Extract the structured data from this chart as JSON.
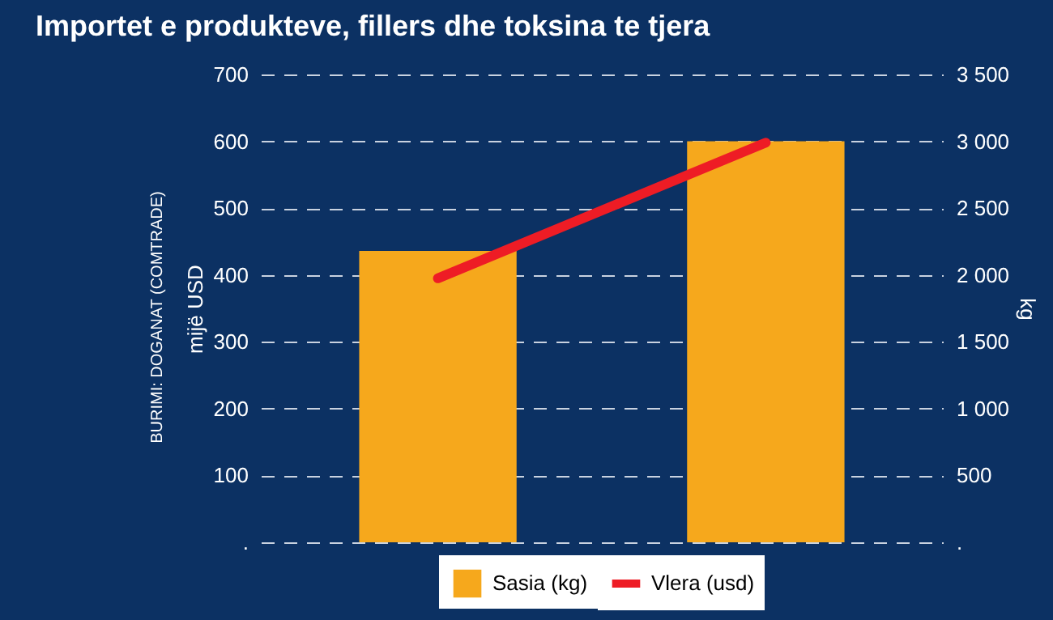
{
  "chart_data": {
    "type": "bar",
    "title": "Importet e produkteve, fillers dhe toksina te tjera",
    "ylabel": "mijë USD",
    "y2label": "kg",
    "annotations": [
      "BURIMI: DOGANAT (COMTRADE)"
    ],
    "categories": [
      null,
      null
    ],
    "series": [
      {
        "name": "Sasia (kg)",
        "axis": "y2",
        "color": "#f6a81c",
        "values": [
          2180,
          3000
        ]
      },
      {
        "name": "Vlera (usd)",
        "type": "line",
        "axis": "y",
        "color": "#ee1c25",
        "values": [
          395,
          598
        ]
      }
    ],
    "ylim": [
      0,
      700
    ],
    "yticks": [
      {
        "value": 0,
        "label": "."
      },
      100,
      200,
      300,
      400,
      500,
      600,
      700
    ],
    "y2lim": [
      0,
      3500
    ],
    "y2ticks": [
      {
        "value": 0,
        "label": "."
      },
      {
        "value": 500,
        "label": "500"
      },
      {
        "value": 1000,
        "label": "1 000"
      },
      {
        "value": 1500,
        "label": "1 500"
      },
      {
        "value": 2000,
        "label": "2 000"
      },
      {
        "value": 2500,
        "label": "2 500"
      },
      {
        "value": 3000,
        "label": "3 000"
      },
      {
        "value": 3500,
        "label": "3 500"
      }
    ],
    "grid": "y",
    "legend": "bottom"
  }
}
